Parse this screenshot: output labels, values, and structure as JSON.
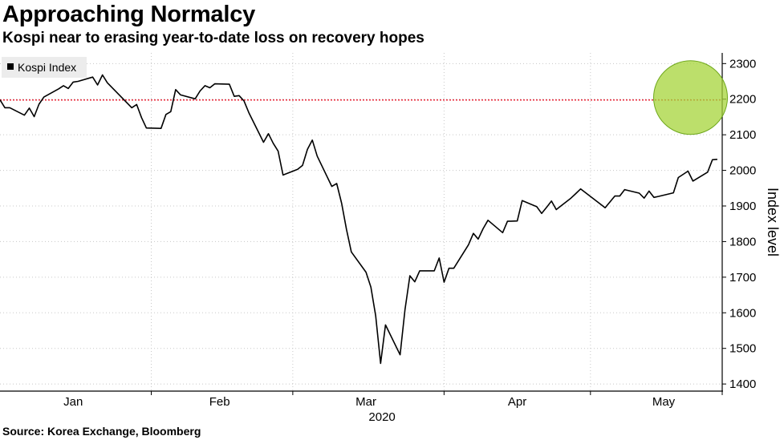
{
  "header": {
    "title": "Approaching Normalcy",
    "subtitle": "Kospi near to erasing year-to-date loss on recovery hopes"
  },
  "footer": {
    "source": "Source: Korea Exchange, Bloomberg"
  },
  "colors": {
    "line": "#000000",
    "reference_line": "#e8283a",
    "highlight_fill": "#a5d43a",
    "highlight_stroke": "#6fa81c",
    "grid": "#c8c8c8",
    "legend_bg": "#ececec"
  },
  "chart_data": {
    "type": "line",
    "title": "Approaching Normalcy",
    "subtitle": "Kospi near to erasing year-to-date loss on recovery hopes",
    "legend": [
      "Kospi Index"
    ],
    "legend_position": "top-left",
    "xlabel": "2020",
    "ylabel": "Index level",
    "y_axis_side": "right",
    "ylim": [
      1380,
      2330
    ],
    "yticks": [
      1400,
      1500,
      1600,
      1700,
      1800,
      1900,
      2000,
      2100,
      2200,
      2300
    ],
    "xlim": [
      "2020-01-01",
      "2020-05-28"
    ],
    "month_boundaries": [
      {
        "date": "2020-02-01"
      },
      {
        "date": "2020-03-01"
      },
      {
        "date": "2020-04-01"
      },
      {
        "date": "2020-05-01"
      },
      {
        "date": "2020-06-01"
      }
    ],
    "month_labels": [
      {
        "label": "Jan",
        "date": "2020-01-16"
      },
      {
        "label": "Feb",
        "date": "2020-02-15"
      },
      {
        "label": "Mar",
        "date": "2020-03-16"
      },
      {
        "label": "Apr",
        "date": "2020-04-16"
      },
      {
        "label": "May",
        "date": "2020-05-16"
      }
    ],
    "grid": true,
    "reference_line": {
      "value": 2197.67,
      "style": "dotted"
    },
    "highlight": {
      "shape": "circle",
      "center": {
        "date": "2020-05-22",
        "value": 2200
      }
    },
    "series": [
      {
        "name": "Kospi Index",
        "x": [
          "2020-01-01",
          "2020-01-02",
          "2020-01-03",
          "2020-01-06",
          "2020-01-07",
          "2020-01-08",
          "2020-01-09",
          "2020-01-10",
          "2020-01-13",
          "2020-01-14",
          "2020-01-15",
          "2020-01-16",
          "2020-01-17",
          "2020-01-20",
          "2020-01-21",
          "2020-01-22",
          "2020-01-23",
          "2020-01-28",
          "2020-01-29",
          "2020-01-30",
          "2020-01-31",
          "2020-02-03",
          "2020-02-04",
          "2020-02-05",
          "2020-02-06",
          "2020-02-07",
          "2020-02-10",
          "2020-02-11",
          "2020-02-12",
          "2020-02-13",
          "2020-02-14",
          "2020-02-17",
          "2020-02-18",
          "2020-02-19",
          "2020-02-20",
          "2020-02-21",
          "2020-02-24",
          "2020-02-25",
          "2020-02-26",
          "2020-02-27",
          "2020-02-28",
          "2020-03-02",
          "2020-03-03",
          "2020-03-04",
          "2020-03-05",
          "2020-03-06",
          "2020-03-09",
          "2020-03-10",
          "2020-03-11",
          "2020-03-12",
          "2020-03-13",
          "2020-03-16",
          "2020-03-17",
          "2020-03-18",
          "2020-03-19",
          "2020-03-20",
          "2020-03-23",
          "2020-03-24",
          "2020-03-25",
          "2020-03-26",
          "2020-03-27",
          "2020-03-30",
          "2020-03-31",
          "2020-04-01",
          "2020-04-02",
          "2020-04-03",
          "2020-04-06",
          "2020-04-07",
          "2020-04-08",
          "2020-04-09",
          "2020-04-10",
          "2020-04-13",
          "2020-04-14",
          "2020-04-16",
          "2020-04-17",
          "2020-04-20",
          "2020-04-21",
          "2020-04-22",
          "2020-04-23",
          "2020-04-24",
          "2020-04-27",
          "2020-04-28",
          "2020-04-29",
          "2020-05-04",
          "2020-05-06",
          "2020-05-07",
          "2020-05-08",
          "2020-05-11",
          "2020-05-12",
          "2020-05-13",
          "2020-05-14",
          "2020-05-15",
          "2020-05-18",
          "2020-05-19",
          "2020-05-20",
          "2020-05-21",
          "2020-05-22",
          "2020-05-25",
          "2020-05-26",
          "2020-05-27"
        ],
        "values": [
          2198,
          2176,
          2176,
          2155,
          2175,
          2151,
          2186,
          2206,
          2229,
          2238,
          2230,
          2248,
          2250,
          2262,
          2240,
          2268,
          2246,
          2176,
          2185,
          2148,
          2119,
          2118,
          2157,
          2165,
          2227,
          2212,
          2201,
          2223,
          2238,
          2232,
          2243,
          2242,
          2208,
          2210,
          2195,
          2162,
          2079,
          2103,
          2076,
          2054,
          1987,
          2003,
          2014,
          2059,
          2085,
          2040,
          1955,
          1963,
          1908,
          1834,
          1771,
          1714,
          1672,
          1591,
          1458,
          1566,
          1482,
          1609,
          1704,
          1687,
          1718,
          1718,
          1754,
          1686,
          1725,
          1725,
          1791,
          1823,
          1807,
          1836,
          1860,
          1825,
          1857,
          1858,
          1915,
          1898,
          1879,
          1896,
          1914,
          1890,
          1922,
          1935,
          1948,
          1895,
          1928,
          1928,
          1946,
          1936,
          1922,
          1942,
          1924,
          1927,
          1937,
          1980,
          1989,
          1998,
          1970,
          1995,
          2030,
          2031
        ]
      }
    ]
  }
}
